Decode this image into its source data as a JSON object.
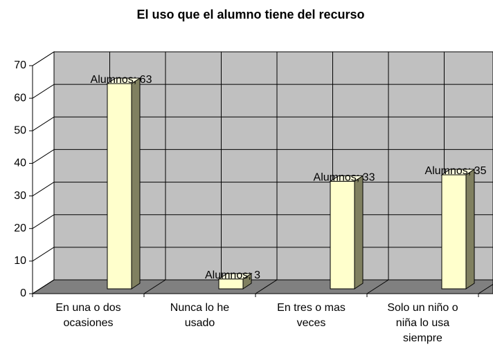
{
  "chart_data": {
    "type": "bar3d",
    "title": "El uso que el alumno tiene del recurso",
    "categories": [
      "En una o dos ocasiones",
      "Nunca lo he usado",
      "En tres o mas veces",
      "Solo un niño o niña lo usa siempre"
    ],
    "series": [
      {
        "name": "Alumnos",
        "color": "#ffffcc",
        "values": [
          63,
          3,
          33,
          35
        ],
        "value_labels": [
          "Alumnos; 63",
          "Alumnos; 3",
          "Alumnos; 33",
          "Alumnos; 35"
        ]
      }
    ],
    "ylim": [
      0,
      70
    ],
    "yticks": [
      0,
      10,
      20,
      30,
      40,
      50,
      60,
      70
    ],
    "grid": true
  }
}
